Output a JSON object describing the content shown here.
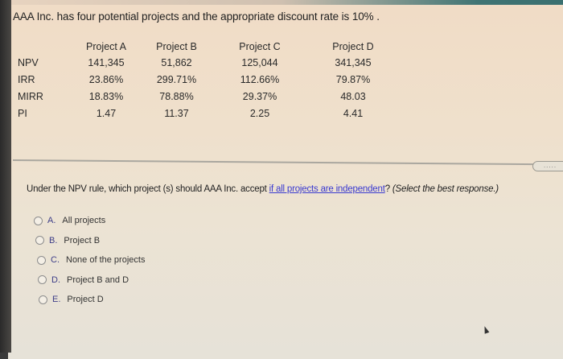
{
  "problem": {
    "intro": "AAA Inc. has four potential projects and the appropriate discount rate is 10% .",
    "table": {
      "headers": [
        "",
        "Project A",
        "Project B",
        "Project C",
        "Project D"
      ],
      "rows": [
        {
          "label": "NPV",
          "values": [
            "141,345",
            "51,862",
            "125,044",
            "341,345"
          ]
        },
        {
          "label": "IRR",
          "values": [
            "23.86%",
            "299.71%",
            "112.66%",
            "79.87%"
          ]
        },
        {
          "label": "MIRR",
          "values": [
            "18.83%",
            "78.88%",
            "29.37%",
            "48.03"
          ]
        },
        {
          "label": "PI",
          "values": [
            "1.47",
            "11.37",
            "2.25",
            "4.41"
          ]
        }
      ]
    }
  },
  "more_button": {
    "label": "....."
  },
  "question": {
    "prefix": "Under the NPV rule, which project (s) should AAA Inc. accept ",
    "link": "if all projects are independent",
    "suffix": "? ",
    "hint": "(Select the best response.)"
  },
  "options": [
    {
      "letter": "A.",
      "text": "All projects",
      "selected": false
    },
    {
      "letter": "B.",
      "text": "Project B",
      "selected": false
    },
    {
      "letter": "C.",
      "text": "None of the projects",
      "selected": false
    },
    {
      "letter": "D.",
      "text": "Project B and D",
      "selected": false
    },
    {
      "letter": "E.",
      "text": "Project D",
      "selected": false
    }
  ]
}
